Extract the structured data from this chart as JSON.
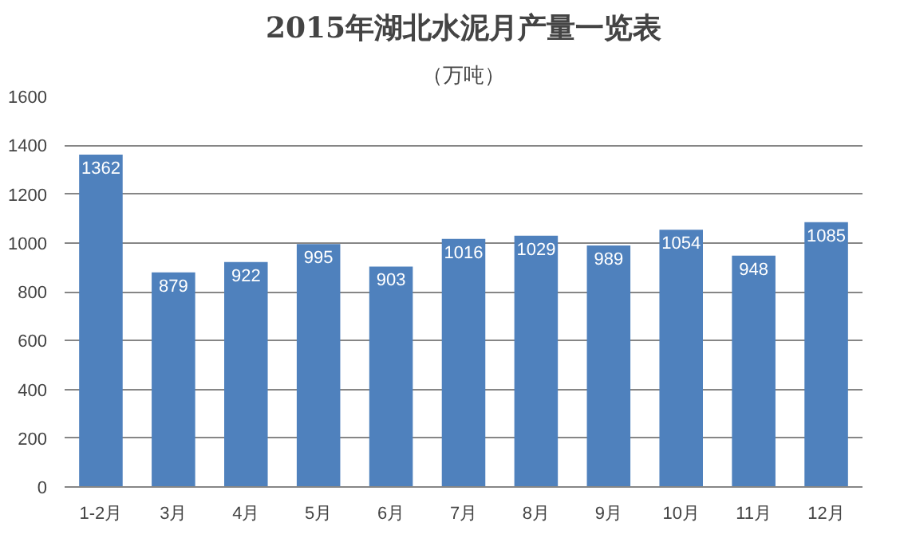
{
  "chart_data": {
    "type": "bar",
    "title": "2015年湖北水泥月产量一览表",
    "subtitle": "（万吨）",
    "categories": [
      "1-2月",
      "3月",
      "4月",
      "5月",
      "6月",
      "7月",
      "8月",
      "9月",
      "10月",
      "11月",
      "12月"
    ],
    "values": [
      1362,
      879,
      922,
      995,
      903,
      1016,
      1029,
      989,
      1054,
      948,
      1085
    ],
    "color": "#4f81bd",
    "ylim": [
      0,
      1600
    ],
    "yticks": [
      0,
      200,
      400,
      600,
      800,
      1000,
      1200,
      1400,
      1600
    ],
    "grid": "y",
    "data_labels": true
  }
}
